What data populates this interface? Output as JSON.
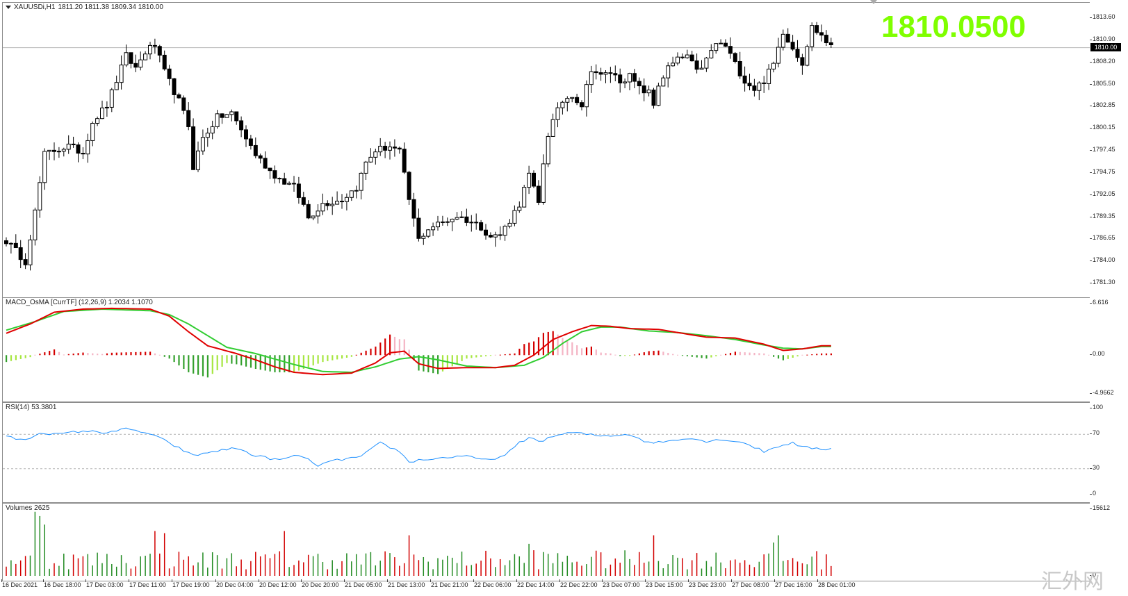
{
  "main": {
    "title_arrow": "▼",
    "symbol": "XAUUSDi,H1",
    "ohlc": "1811.20 1811.38 1809.34 1810.00",
    "big_price": "1810.0500",
    "current_price": "1810.00",
    "y_labels": [
      "1813.60",
      "1810.90",
      "1808.20",
      "1805.50",
      "1802.85",
      "1800.15",
      "1797.45",
      "1794.75",
      "1792.05",
      "1789.35",
      "1786.65",
      "1784.00",
      "1781.30"
    ],
    "colors": {
      "bull_body": "#ffffff",
      "bear_body": "#000000",
      "wick": "#000000",
      "price_line": "#b4b4b4",
      "big_price": "#7fff00"
    }
  },
  "macd": {
    "title": "MACD_OsMA [CurrTF] (12,26,9) 1.2034 1.1070",
    "y_labels": [
      "6.616",
      "0.00",
      "-4.9662"
    ],
    "colors": {
      "macd_line": "#e00000",
      "signal_line": "#32cd32",
      "hist_up_strong": "#d40000",
      "hist_up_weak": "#f4b4c4",
      "hist_down_strong": "#33a02c",
      "hist_down_weak": "#a6e640"
    }
  },
  "rsi": {
    "title": "RSI(14) 53.3801",
    "y_labels": [
      "100",
      "70",
      "30",
      "0"
    ],
    "colors": {
      "line": "#1e90ff",
      "level": "#b4b4b4"
    }
  },
  "volumes": {
    "title": "Volumes 2625",
    "y_labels": [
      "15612",
      "0"
    ],
    "colors": {
      "up": "#228b22",
      "down": "#d20000"
    }
  },
  "x_labels": [
    "16 Dec 2021",
    "16 Dec 18:00",
    "17 Dec 03:00",
    "17 Dec 11:00",
    "17 Dec 19:00",
    "20 Dec 04:00",
    "20 Dec 12:00",
    "20 Dec 20:00",
    "21 Dec 05:00",
    "21 Dec 13:00",
    "21 Dec 21:00",
    "22 Dec 06:00",
    "22 Dec 14:00",
    "22 Dec 22:00",
    "23 Dec 07:00",
    "23 Dec 15:00",
    "23 Dec 23:00",
    "27 Dec 08:00",
    "27 Dec 16:00",
    "28 Dec 01:00"
  ],
  "watermark": "汇外网",
  "chart_data": [
    {
      "type": "candlestick",
      "title": "XAUUSDi,H1",
      "ylim": [
        1781.3,
        1815.0
      ],
      "x_first": "16 Dec 2021",
      "x_last": "28 Dec 01:00",
      "close_start": 1786.5,
      "close_points": [
        [
          0,
          1786.5
        ],
        [
          4,
          1784.0
        ],
        [
          6,
          1790.0
        ],
        [
          8,
          1797.0
        ],
        [
          10,
          1797.5
        ],
        [
          13,
          1798.0
        ],
        [
          16,
          1797.2
        ],
        [
          18,
          1801.0
        ],
        [
          21,
          1803.0
        ],
        [
          23,
          1806.0
        ],
        [
          25,
          1809.0
        ],
        [
          27,
          1807.5
        ],
        [
          29,
          1809.5
        ],
        [
          31,
          1810.3
        ],
        [
          33,
          1807.0
        ],
        [
          36,
          1803.5
        ],
        [
          38,
          1800.5
        ],
        [
          39,
          1795.5
        ],
        [
          41,
          1799.0
        ],
        [
          44,
          1801.5
        ],
        [
          47,
          1802.0
        ],
        [
          50,
          1799.0
        ],
        [
          52,
          1797.0
        ],
        [
          55,
          1795.0
        ],
        [
          57,
          1794.0
        ],
        [
          60,
          1793.0
        ],
        [
          62,
          1790.8
        ],
        [
          63,
          1789.3
        ],
        [
          66,
          1791.0
        ],
        [
          70,
          1791.5
        ],
        [
          73,
          1793.0
        ],
        [
          75,
          1796.0
        ],
        [
          77,
          1797.5
        ],
        [
          79,
          1797.8
        ],
        [
          80,
          1798.0
        ],
        [
          82,
          1797.3
        ],
        [
          84,
          1791.5
        ],
        [
          86,
          1786.6
        ],
        [
          88,
          1788.0
        ],
        [
          92,
          1789.0
        ],
        [
          94,
          1789.5
        ],
        [
          97,
          1788.8
        ],
        [
          99,
          1788.2
        ],
        [
          101,
          1787.0
        ],
        [
          103,
          1787.2
        ],
        [
          105,
          1789.0
        ],
        [
          107,
          1791.0
        ],
        [
          109,
          1794.5
        ],
        [
          111,
          1791.0
        ],
        [
          112,
          1796.0
        ],
        [
          113,
          1799.5
        ],
        [
          114,
          1801.0
        ],
        [
          116,
          1803.5
        ],
        [
          118,
          1804.3
        ],
        [
          120,
          1803.0
        ],
        [
          122,
          1807.5
        ],
        [
          124,
          1806.5
        ],
        [
          126,
          1807.0
        ],
        [
          128,
          1806.0
        ],
        [
          130,
          1806.5
        ],
        [
          132,
          1805.0
        ],
        [
          134,
          1804.5
        ],
        [
          135,
          1803.0
        ],
        [
          136,
          1805.5
        ],
        [
          138,
          1807.5
        ],
        [
          140,
          1808.5
        ],
        [
          142,
          1809.0
        ],
        [
          144,
          1807.0
        ],
        [
          146,
          1808.5
        ],
        [
          148,
          1810.5
        ],
        [
          150,
          1810.2
        ],
        [
          152,
          1808.0
        ],
        [
          154,
          1806.0
        ],
        [
          156,
          1805.0
        ],
        [
          158,
          1806.0
        ],
        [
          160,
          1808.0
        ],
        [
          162,
          1812.0
        ],
        [
          164,
          1810.0
        ],
        [
          166,
          1808.2
        ],
        [
          168,
          1812.5
        ],
        [
          170,
          1811.5
        ],
        [
          172,
          1810.0
        ]
      ]
    },
    {
      "type": "line",
      "title": "MACD_OsMA [CurrTF] (12,26,9) 1.2034 1.1070",
      "ylim": [
        -4.9662,
        6.616
      ],
      "series": [
        {
          "name": "MACD",
          "points": [
            [
              0,
              2.8
            ],
            [
              5,
              4.0
            ],
            [
              10,
              5.5
            ],
            [
              16,
              5.9
            ],
            [
              22,
              6.0
            ],
            [
              30,
              5.9
            ],
            [
              34,
              5.0
            ],
            [
              38,
              3.0
            ],
            [
              42,
              1.2
            ],
            [
              48,
              0.2
            ],
            [
              52,
              -0.6
            ],
            [
              56,
              -1.5
            ],
            [
              60,
              -2.2
            ],
            [
              66,
              -2.5
            ],
            [
              72,
              -2.3
            ],
            [
              77,
              -1.0
            ],
            [
              80,
              0.3
            ],
            [
              83,
              0.5
            ],
            [
              86,
              -1.1
            ],
            [
              90,
              -1.7
            ],
            [
              96,
              -1.6
            ],
            [
              102,
              -1.6
            ],
            [
              106,
              -1.3
            ],
            [
              110,
              0.0
            ],
            [
              114,
              2.0
            ],
            [
              118,
              3.0
            ],
            [
              122,
              3.8
            ],
            [
              126,
              3.7
            ],
            [
              130,
              3.4
            ],
            [
              136,
              3.3
            ],
            [
              140,
              2.9
            ],
            [
              146,
              2.3
            ],
            [
              152,
              2.2
            ],
            [
              158,
              1.4
            ],
            [
              162,
              0.6
            ],
            [
              166,
              0.8
            ],
            [
              170,
              1.2
            ]
          ]
        },
        {
          "name": "Signal",
          "points": [
            [
              0,
              3.2
            ],
            [
              6,
              4.3
            ],
            [
              12,
              5.6
            ],
            [
              20,
              5.9
            ],
            [
              30,
              5.7
            ],
            [
              34,
              5.2
            ],
            [
              38,
              4.0
            ],
            [
              42,
              2.5
            ],
            [
              46,
              1.0
            ],
            [
              52,
              0.2
            ],
            [
              56,
              -0.5
            ],
            [
              60,
              -1.2
            ],
            [
              66,
              -2.1
            ],
            [
              72,
              -2.2
            ],
            [
              77,
              -1.5
            ],
            [
              82,
              -0.5
            ],
            [
              86,
              -0.2
            ],
            [
              90,
              -0.6
            ],
            [
              96,
              -1.4
            ],
            [
              102,
              -1.6
            ],
            [
              108,
              -1.3
            ],
            [
              112,
              -0.3
            ],
            [
              116,
              1.5
            ],
            [
              120,
              3.0
            ],
            [
              124,
              3.6
            ],
            [
              128,
              3.6
            ],
            [
              134,
              3.1
            ],
            [
              140,
              2.9
            ],
            [
              146,
              2.5
            ],
            [
              152,
              2.0
            ],
            [
              158,
              1.3
            ],
            [
              162,
              0.9
            ],
            [
              166,
              0.8
            ],
            [
              170,
              1.1
            ]
          ]
        }
      ]
    },
    {
      "type": "line",
      "title": "RSI(14) 53.3801",
      "ylim": [
        0,
        100
      ],
      "levels": [
        70,
        30
      ],
      "series": [
        {
          "name": "RSI(14)",
          "points": [
            [
              0,
              67
            ],
            [
              4,
              63
            ],
            [
              7,
              72
            ],
            [
              11,
              70
            ],
            [
              16,
              74
            ],
            [
              20,
              72
            ],
            [
              25,
              76
            ],
            [
              29,
              72
            ],
            [
              31,
              68
            ],
            [
              34,
              60
            ],
            [
              39,
              45
            ],
            [
              43,
              50
            ],
            [
              48,
              54
            ],
            [
              52,
              45
            ],
            [
              57,
              40
            ],
            [
              61,
              46
            ],
            [
              65,
              34
            ],
            [
              69,
              40
            ],
            [
              74,
              44
            ],
            [
              78,
              60
            ],
            [
              82,
              50
            ],
            [
              84,
              38
            ],
            [
              86,
              40
            ],
            [
              90,
              42
            ],
            [
              95,
              45
            ],
            [
              100,
              40
            ],
            [
              104,
              45
            ],
            [
              107,
              60
            ],
            [
              109,
              66
            ],
            [
              112,
              62
            ],
            [
              114,
              68
            ],
            [
              118,
              72
            ],
            [
              124,
              68
            ],
            [
              130,
              70
            ],
            [
              134,
              60
            ],
            [
              138,
              62
            ],
            [
              142,
              66
            ],
            [
              146,
              62
            ],
            [
              150,
              64
            ],
            [
              154,
              60
            ],
            [
              158,
              50
            ],
            [
              162,
              58
            ],
            [
              164,
              60
            ],
            [
              166,
              55
            ],
            [
              170,
              53
            ]
          ]
        }
      ]
    },
    {
      "type": "bar",
      "title": "Volumes 2625",
      "ylim": [
        0,
        15612
      ],
      "n": 173
    }
  ]
}
